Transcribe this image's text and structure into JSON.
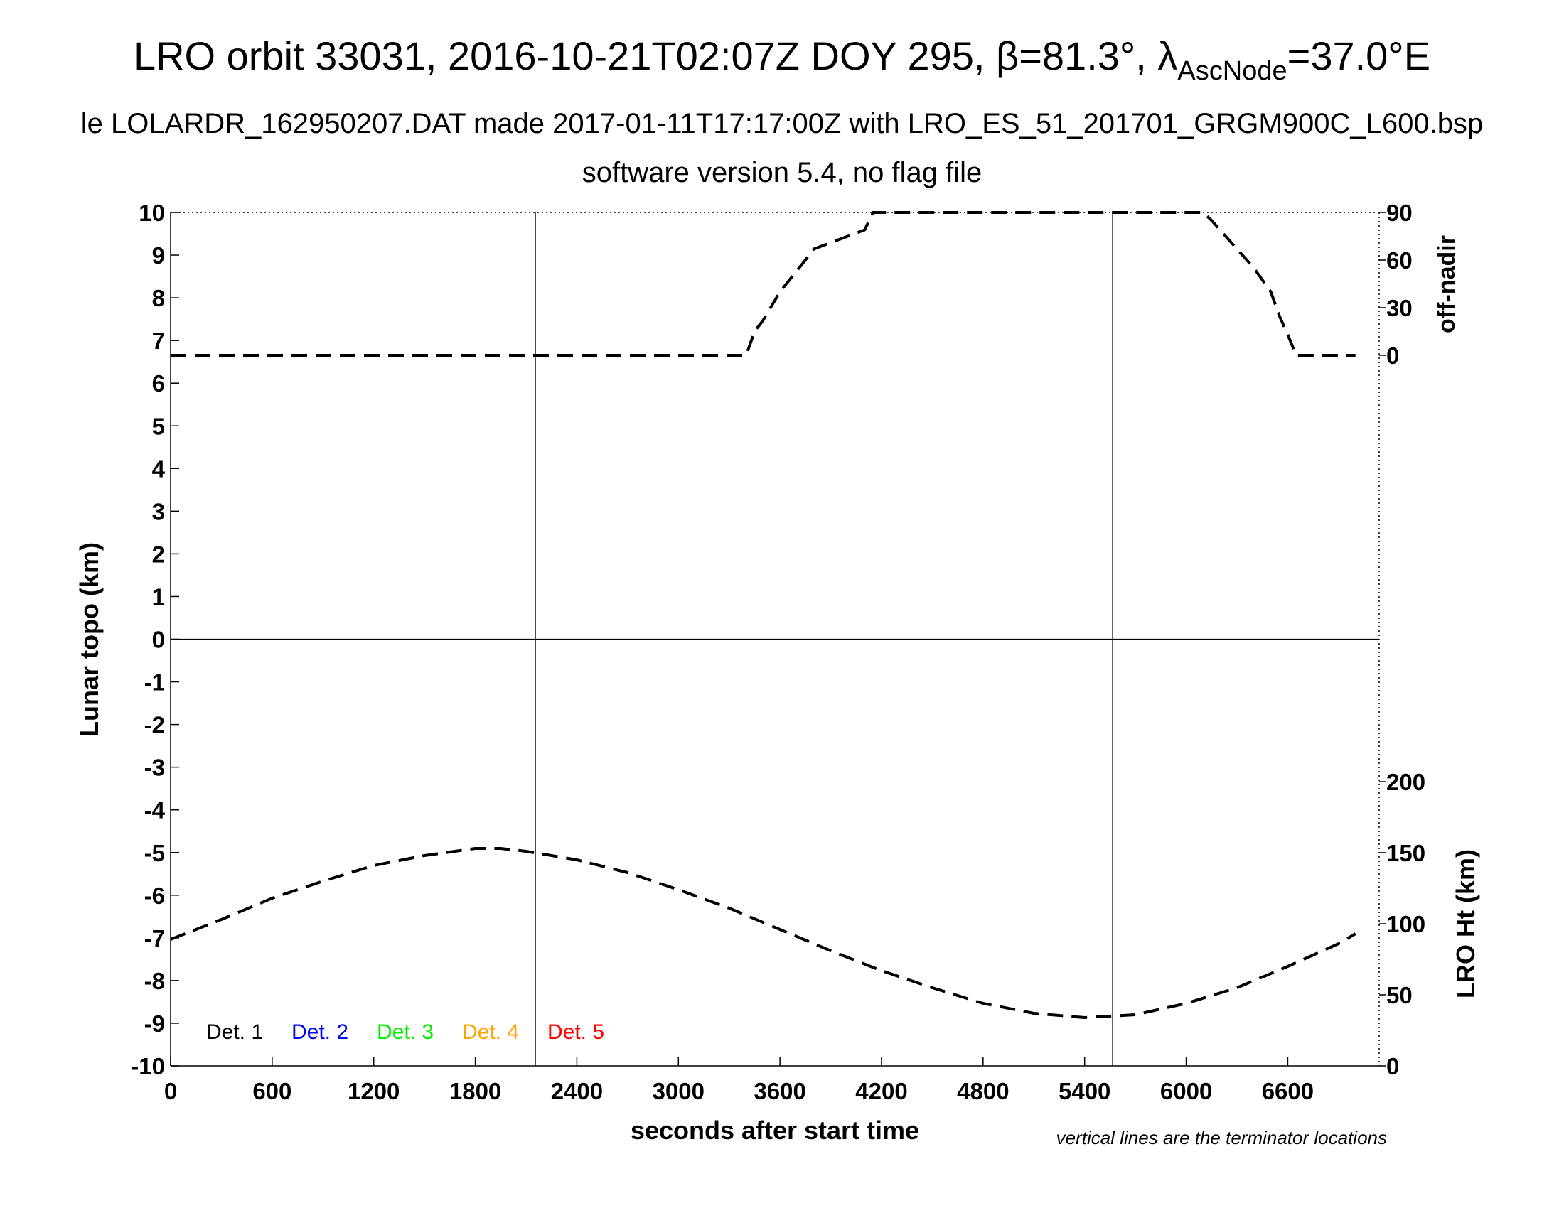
{
  "chart_data": {
    "type": "line",
    "title": "LRO orbit 33031, 2016-10-21T02:07Z DOY 295, β=81.3°, λ",
    "title_sub": "AscNode",
    "title_end": "=37.0°E",
    "subtitle1": "le LOLARDR_162950207.DAT made 2017-01-11T17:17:00Z with LRO_ES_51_201701_GRGM900C_L600.bsp",
    "subtitle2": "software version 5.4, no flag file",
    "xlabel": "seconds after start time",
    "ylabel_left": "Lunar topo (km)",
    "ylabel_right_top": "off-nadir",
    "ylabel_right_bottom": "LRO Ht (km)",
    "footnote": "vertical lines are the terminator locations",
    "xlim": [
      0,
      7140
    ],
    "ylim": [
      -10,
      10
    ],
    "grid": false,
    "x_ticks": [
      "0",
      "600",
      "1200",
      "1800",
      "2400",
      "3000",
      "3600",
      "4200",
      "4800",
      "5400",
      "6000",
      "6600"
    ],
    "y_ticks": [
      "10",
      "9",
      "8",
      "7",
      "6",
      "5",
      "4",
      "3",
      "2",
      "1",
      "0",
      "-1",
      "-2",
      "-3",
      "-4",
      "-5",
      "-6",
      "-7",
      "-8",
      "-9",
      "-10"
    ],
    "offnadir_ticks": [
      "90",
      "60",
      "30",
      "0"
    ],
    "ht_ticks": [
      "200",
      "150",
      "100",
      "50",
      "0"
    ],
    "terminator_x": [
      2155,
      5565
    ],
    "zero_line_y": 0,
    "legend_placement": "bottom-left",
    "legend": [
      {
        "label": "Det. 1",
        "color": "#000000"
      },
      {
        "label": "Det. 2",
        "color": "#0000ff"
      },
      {
        "label": "Det. 3",
        "color": "#00ee00"
      },
      {
        "label": "Det. 4",
        "color": "#ffa500"
      },
      {
        "label": "Det. 5",
        "color": "#ff0000"
      }
    ],
    "series": [
      {
        "name": "off-nadir",
        "axis": "off-nadir (deg)",
        "style": "dashed",
        "x": [
          0,
          3400,
          3450,
          3500,
          3600,
          3750,
          3800,
          4000,
          4100,
          4150,
          6100,
          6150,
          6250,
          6400,
          6500,
          6550,
          6600,
          6650,
          7000
        ],
        "y": [
          0,
          0,
          15,
          22,
          40,
          60,
          67,
          75,
          79,
          90,
          90,
          85,
          73,
          55,
          40,
          25,
          13,
          0,
          0
        ]
      },
      {
        "name": "LRO Ht (km)",
        "axis": "LRO Ht (km)",
        "style": "dashed",
        "x": [
          0,
          300,
          600,
          900,
          1200,
          1500,
          1800,
          1950,
          2100,
          2400,
          2700,
          3000,
          3300,
          3600,
          3900,
          4200,
          4500,
          4800,
          5100,
          5400,
          5700,
          6000,
          6300,
          6600,
          6900,
          7000
        ],
        "y": [
          89,
          103,
          118,
          130,
          141,
          148,
          153,
          153,
          151,
          145,
          136,
          124,
          111,
          96,
          81,
          67,
          55,
          44,
          37,
          34,
          36,
          44,
          55,
          70,
          86,
          93
        ]
      }
    ]
  }
}
